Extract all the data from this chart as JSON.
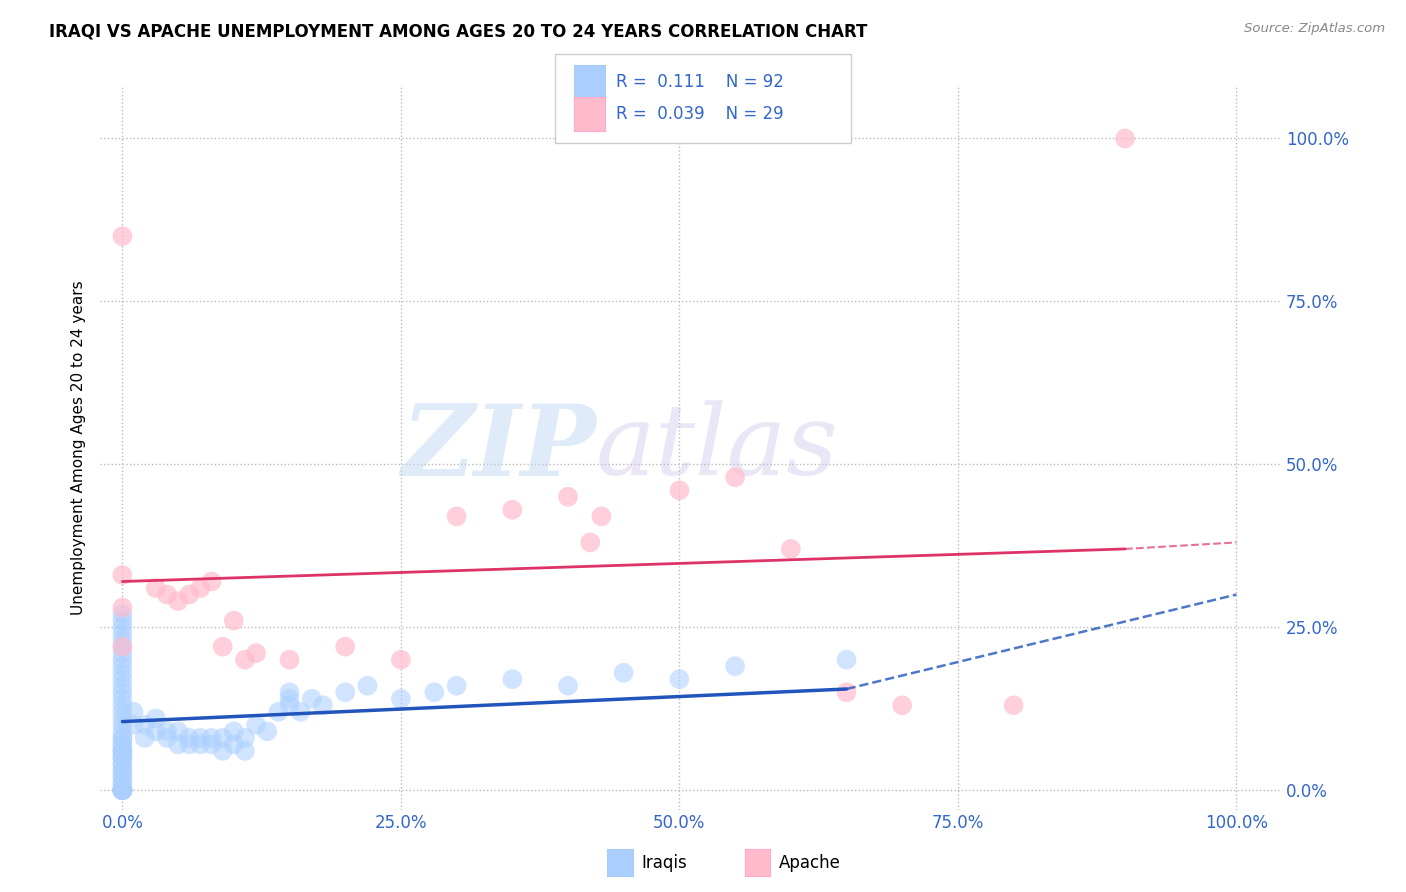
{
  "title": "IRAQI VS APACHE UNEMPLOYMENT AMONG AGES 20 TO 24 YEARS CORRELATION CHART",
  "source": "Source: ZipAtlas.com",
  "xlabel_tick_vals": [
    0,
    25,
    50,
    75,
    100
  ],
  "ylabel_tick_vals": [
    0,
    25,
    50,
    75,
    100
  ],
  "ylabel": "Unemployment Among Ages 20 to 24 years",
  "xlim": [
    -2,
    104
  ],
  "ylim": [
    -3,
    108
  ],
  "iraqi_color": "#aacfff",
  "apache_color": "#ffbbcc",
  "iraqi_line_color": "#2255bb",
  "apache_line_color": "#dd3366",
  "R_iraqi": 0.111,
  "N_iraqi": 92,
  "R_apache": 0.039,
  "N_apache": 29,
  "grid_color": "#bbbbbb",
  "background_color": "#ffffff",
  "watermark_zip": "ZIP",
  "watermark_atlas": "atlas",
  "title_fontsize": 12,
  "iraqi_scatter_x": [
    0,
    0,
    0,
    0,
    0,
    0,
    0,
    0,
    0,
    0,
    0,
    0,
    0,
    0,
    0,
    0,
    0,
    0,
    0,
    0,
    0,
    0,
    0,
    0,
    0,
    0,
    0,
    0,
    0,
    0,
    0,
    0,
    0,
    0,
    0,
    0,
    0,
    0,
    0,
    0,
    0,
    0,
    0,
    0,
    0,
    0,
    0,
    0,
    0,
    0,
    1,
    1,
    2,
    2,
    3,
    3,
    4,
    4,
    5,
    5,
    6,
    6,
    7,
    7,
    8,
    8,
    9,
    9,
    10,
    10,
    11,
    11,
    12,
    13,
    14,
    15,
    15,
    15,
    16,
    17,
    18,
    20,
    22,
    25,
    28,
    30,
    35,
    40,
    45,
    50,
    55,
    65
  ],
  "iraqi_scatter_y": [
    0,
    0,
    0,
    0,
    0,
    0,
    0,
    0,
    0,
    0,
    0,
    0,
    1,
    1,
    2,
    2,
    3,
    3,
    4,
    4,
    5,
    5,
    6,
    6,
    7,
    8,
    9,
    10,
    11,
    12,
    13,
    14,
    15,
    16,
    17,
    18,
    19,
    20,
    21,
    22,
    23,
    24,
    25,
    26,
    27,
    5,
    6,
    7,
    8,
    0,
    10,
    12,
    8,
    10,
    9,
    11,
    8,
    9,
    7,
    9,
    7,
    8,
    7,
    8,
    7,
    8,
    6,
    8,
    7,
    9,
    6,
    8,
    10,
    9,
    12,
    13,
    14,
    15,
    12,
    14,
    13,
    15,
    16,
    14,
    15,
    16,
    17,
    16,
    18,
    17,
    19,
    20
  ],
  "apache_scatter_x": [
    0,
    0,
    0,
    0,
    3,
    4,
    5,
    6,
    7,
    8,
    9,
    10,
    11,
    12,
    15,
    20,
    25,
    30,
    35,
    40,
    42,
    43,
    50,
    55,
    60,
    65,
    70,
    80,
    90
  ],
  "apache_scatter_y": [
    85,
    33,
    28,
    22,
    31,
    30,
    29,
    30,
    31,
    32,
    22,
    26,
    20,
    21,
    20,
    22,
    20,
    42,
    43,
    45,
    38,
    42,
    46,
    48,
    37,
    15,
    13,
    13,
    100
  ],
  "iraqi_line_x0": 0,
  "iraqi_line_x_solid_end": 65,
  "iraqi_line_y0": 10.5,
  "iraqi_line_y_solid_end": 15.5,
  "iraqi_line_y_dash_end": 30,
  "apache_line_y0": 32,
  "apache_line_y_solid_end": 37,
  "apache_line_y_dash_end": 38
}
